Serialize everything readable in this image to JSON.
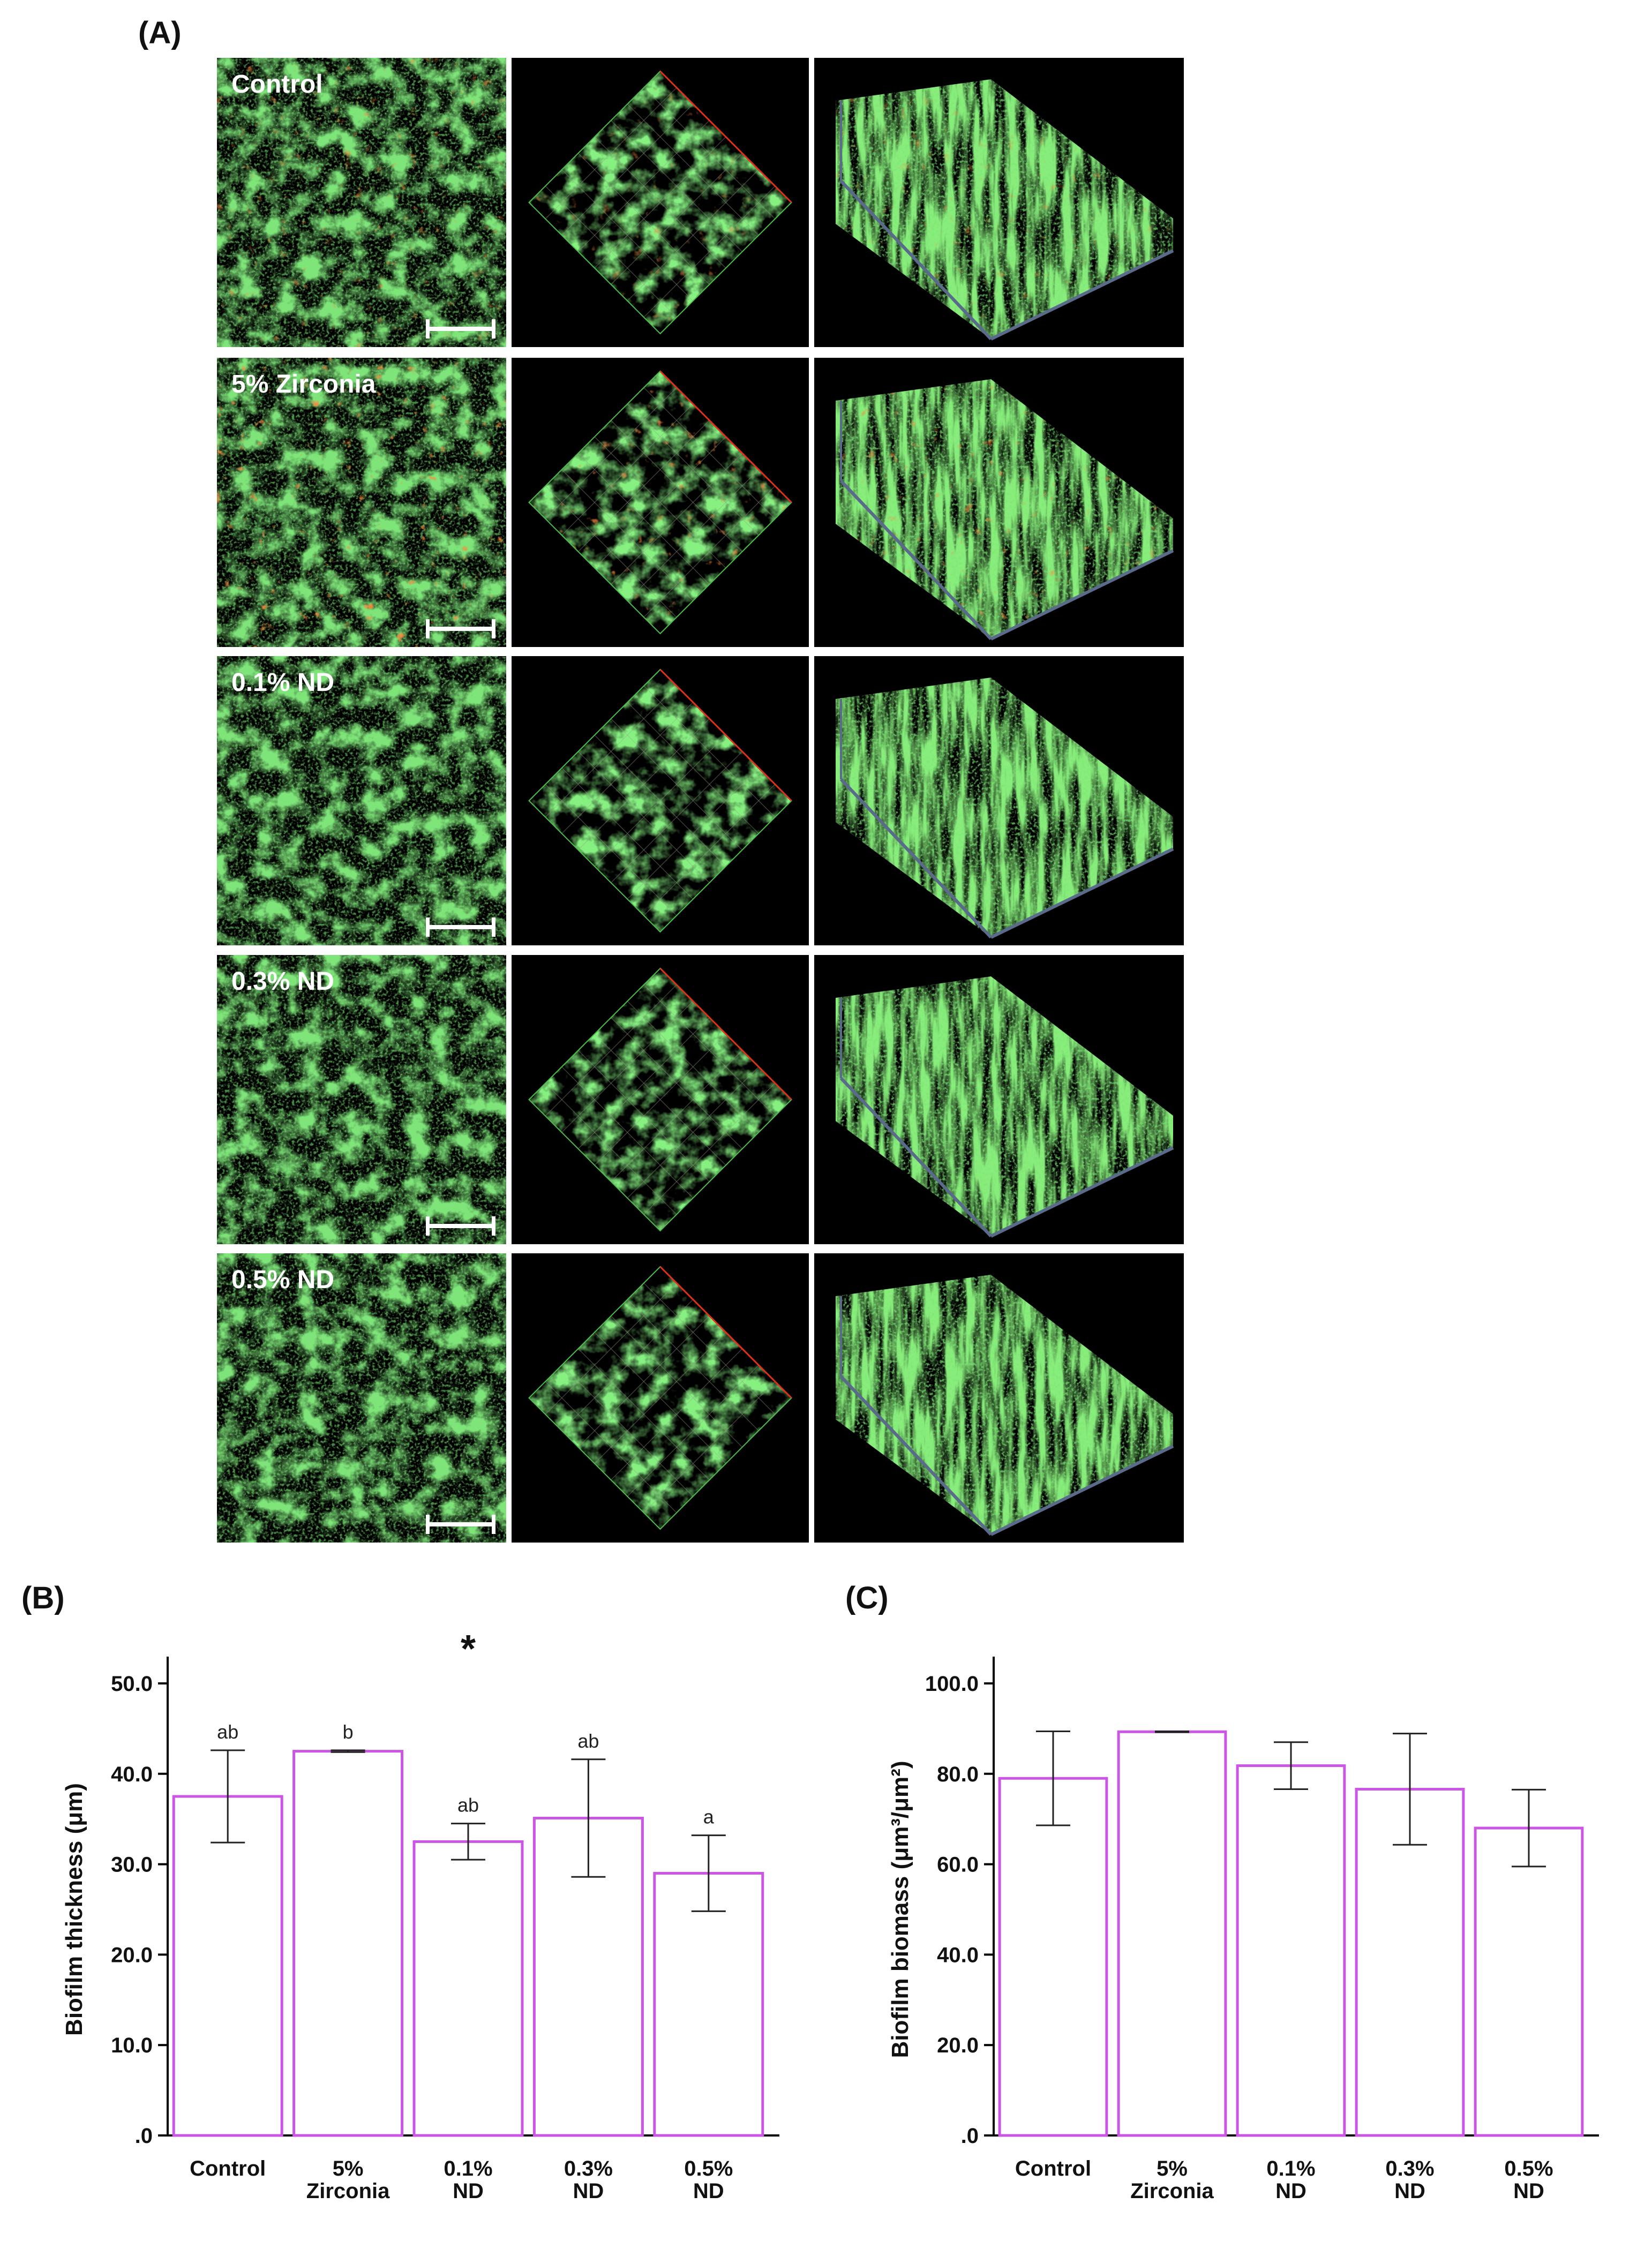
{
  "panels": {
    "a_label": "(A)",
    "b_label": "(B)",
    "c_label": "(C)"
  },
  "micrographs": {
    "rows": [
      {
        "label": "Control",
        "red_level": 0.55
      },
      {
        "label": "5% Zirconia",
        "red_level": 0.85
      },
      {
        "label": "0.1% ND",
        "red_level": 0.05
      },
      {
        "label": "0.3% ND",
        "red_level": 0.0
      },
      {
        "label": "0.5% ND",
        "red_level": 0.0
      }
    ],
    "colors": {
      "live": "#3ee23a",
      "dead": "#ff3a12",
      "background": "#000000"
    }
  },
  "chart_data": [
    {
      "type": "bar",
      "categories": [
        [
          "Control"
        ],
        [
          "5%",
          "Zirconia"
        ],
        [
          "0.1%",
          "ND"
        ],
        [
          "0.3%",
          "ND"
        ],
        [
          "0.5%",
          "ND"
        ]
      ],
      "values": [
        37.5,
        42.5,
        32.5,
        35.1,
        29.0
      ],
      "errors": [
        5.1,
        0.1,
        2.0,
        6.5,
        4.2
      ],
      "annotations": [
        "ab",
        "b",
        "ab",
        "ab",
        "a"
      ],
      "significance_marker": "*",
      "ylabel": "Biofilm thickness (μm)",
      "ylim": [
        0,
        50
      ],
      "yticks": [
        "0",
        "10.0",
        "20.0",
        "30.0",
        "40.0",
        "50.0"
      ],
      "bar_color": "#cc55e6"
    },
    {
      "type": "bar",
      "categories": [
        [
          "Control"
        ],
        [
          "5%",
          "Zirconia"
        ],
        [
          "0.1%",
          "ND"
        ],
        [
          "0.3%",
          "ND"
        ],
        [
          "0.5%",
          "ND"
        ]
      ],
      "values": [
        79.0,
        89.3,
        81.8,
        76.6,
        68.0
      ],
      "errors": [
        10.4,
        0.1,
        5.2,
        12.3,
        8.5
      ],
      "ylabel": "Biofilm biomass (μm³/μm²)",
      "ylim": [
        0,
        100
      ],
      "yticks": [
        "0",
        "20.0",
        "40.0",
        "60.0",
        "80.0",
        "100.0"
      ],
      "bar_color": "#cc55e6"
    }
  ]
}
